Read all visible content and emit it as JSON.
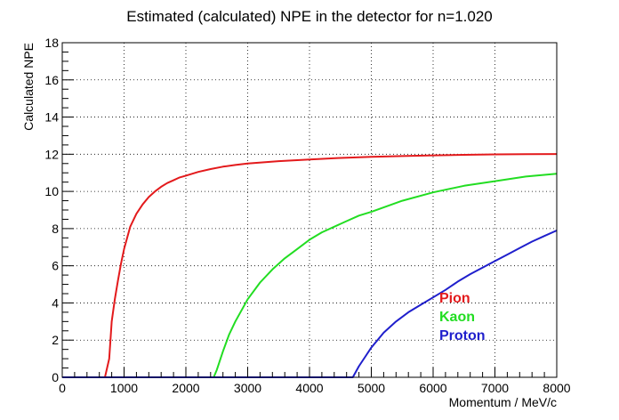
{
  "chart_data": {
    "type": "line",
    "title": "Estimated (calculated) NPE in the detector for n=1.020",
    "xlabel": "Momentum / MeV/c",
    "ylabel": "Calculated NPE",
    "xlim": [
      0,
      8000
    ],
    "ylim": [
      0,
      18
    ],
    "xticks": [
      0,
      1000,
      2000,
      3000,
      4000,
      5000,
      6000,
      7000,
      8000
    ],
    "yticks": [
      0,
      2,
      4,
      6,
      8,
      10,
      12,
      14,
      16,
      18
    ],
    "grid": true,
    "legend_position": "bottom-right",
    "series": [
      {
        "name": "Pion",
        "color": "#e31a1c",
        "x": [
          0,
          690,
          760,
          800,
          850,
          900,
          950,
          1000,
          1100,
          1200,
          1300,
          1400,
          1500,
          1600,
          1700,
          1800,
          1900,
          2000,
          2200,
          2400,
          2600,
          2800,
          3000,
          3500,
          4000,
          4500,
          5000,
          5500,
          6000,
          6500,
          7000,
          7500,
          8000
        ],
        "y": [
          0,
          0,
          1.0,
          3.0,
          4.2,
          5.2,
          6.1,
          6.9,
          8.1,
          8.8,
          9.3,
          9.7,
          10.0,
          10.25,
          10.45,
          10.6,
          10.75,
          10.85,
          11.05,
          11.2,
          11.33,
          11.42,
          11.5,
          11.63,
          11.72,
          11.8,
          11.86,
          11.9,
          11.94,
          11.97,
          11.99,
          12.0,
          12.01
        ]
      },
      {
        "name": "Kaon",
        "color": "#22dd22",
        "x": [
          0,
          2450,
          2500,
          2600,
          2700,
          2800,
          3000,
          3200,
          3400,
          3600,
          3800,
          4000,
          4200,
          4400,
          4600,
          4800,
          5000,
          5500,
          6000,
          6500,
          7000,
          7500,
          8000
        ],
        "y": [
          0,
          0,
          0.4,
          1.4,
          2.3,
          3.0,
          4.2,
          5.1,
          5.8,
          6.4,
          6.9,
          7.4,
          7.8,
          8.1,
          8.4,
          8.7,
          8.9,
          9.5,
          9.95,
          10.3,
          10.55,
          10.8,
          10.95
        ]
      },
      {
        "name": "Proton",
        "color": "#1f1fcc",
        "x": [
          0,
          4700,
          4800,
          4900,
          5000,
          5200,
          5400,
          5600,
          5800,
          6000,
          6200,
          6400,
          6600,
          6800,
          7000,
          7200,
          7400,
          7600,
          7800,
          8000
        ],
        "y": [
          0,
          0,
          0.6,
          1.1,
          1.6,
          2.4,
          3.0,
          3.5,
          3.9,
          4.3,
          4.7,
          5.15,
          5.55,
          5.9,
          6.25,
          6.6,
          6.95,
          7.3,
          7.6,
          7.9
        ]
      }
    ]
  }
}
